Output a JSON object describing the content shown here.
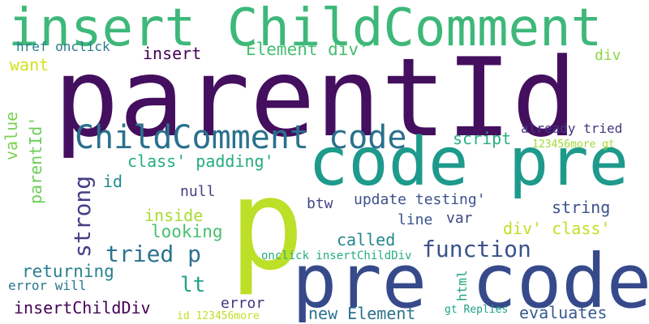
{
  "words": [
    "parentId",
    "insert ChildComment",
    "code pre",
    "pre code",
    "p",
    "ChildComment code",
    "tried p",
    "function",
    "lt",
    "Element div'",
    "looking",
    "returning",
    "insertChildDiv",
    "new Element",
    "evaluates",
    "string",
    "div' class'",
    "class' padding'",
    "null",
    "insert",
    "href onclick",
    "want",
    "div",
    "already tried",
    "script",
    "123456more gt",
    "called",
    "line",
    "update testing'",
    "var",
    "btw",
    "inside",
    "id",
    "onclick insertChildDiv",
    "strong",
    "parentId'",
    "value",
    "html",
    "error will",
    "error",
    "gt Replies",
    "id 123456more"
  ]
}
